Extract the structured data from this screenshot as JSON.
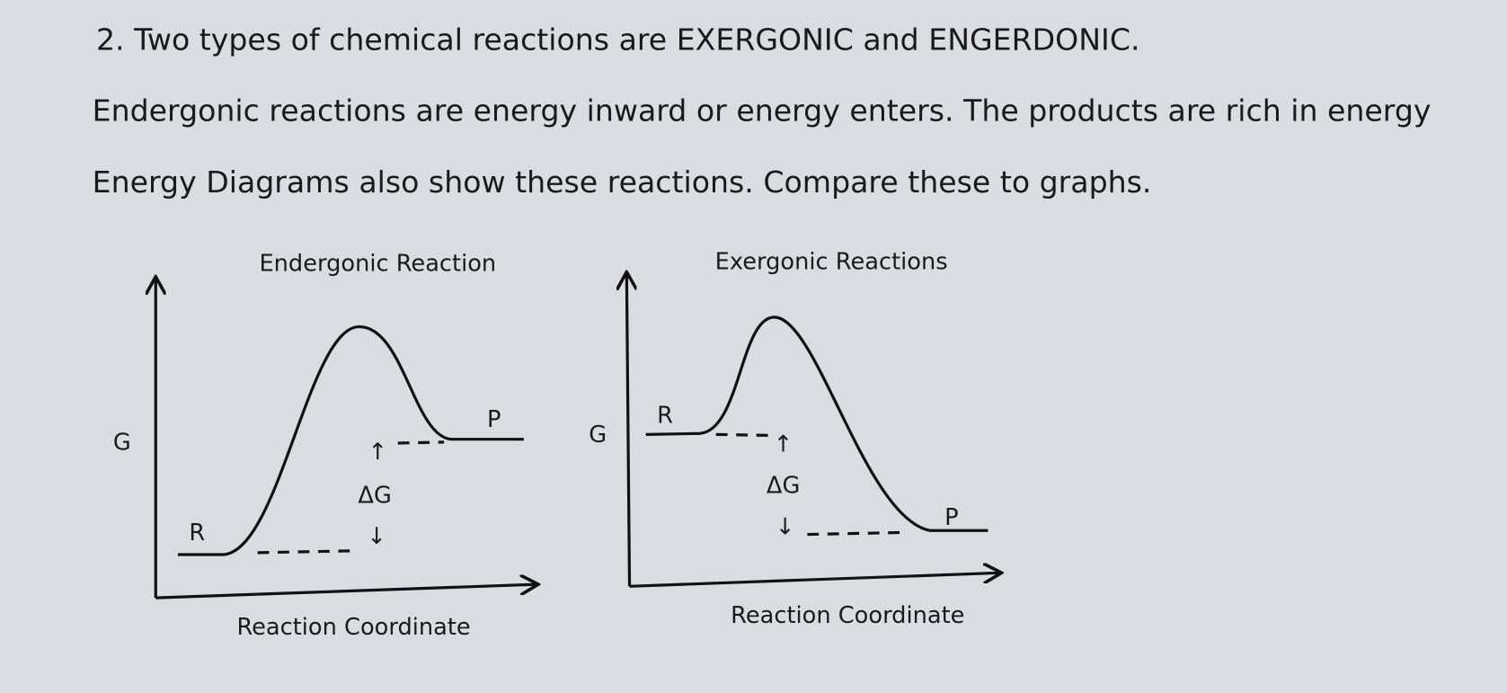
{
  "question": {
    "text": "2. Two types of chemical reactions are EXERGONIC and ENGERDONIC."
  },
  "paragraphs": [
    "Endergonic reactions are energy inward or energy enters. The products are rich in energy",
    "Energy Diagrams also show these reactions. Compare these to graphs."
  ],
  "diagrams": [
    {
      "title": "Endergonic Reaction",
      "y_label": "G",
      "x_label": "Reaction Coordinate",
      "reactant": "R",
      "product": "P",
      "up_arrow": "↑",
      "delta": "ΔG",
      "down_arrow": "↓"
    },
    {
      "title": "Exergonic Reactions",
      "y_label": "G",
      "x_label": "Reaction Coordinate",
      "reactant": "R",
      "product": "P",
      "up_arrow": "↑",
      "delta": "ΔG",
      "down_arrow": "↓"
    }
  ]
}
